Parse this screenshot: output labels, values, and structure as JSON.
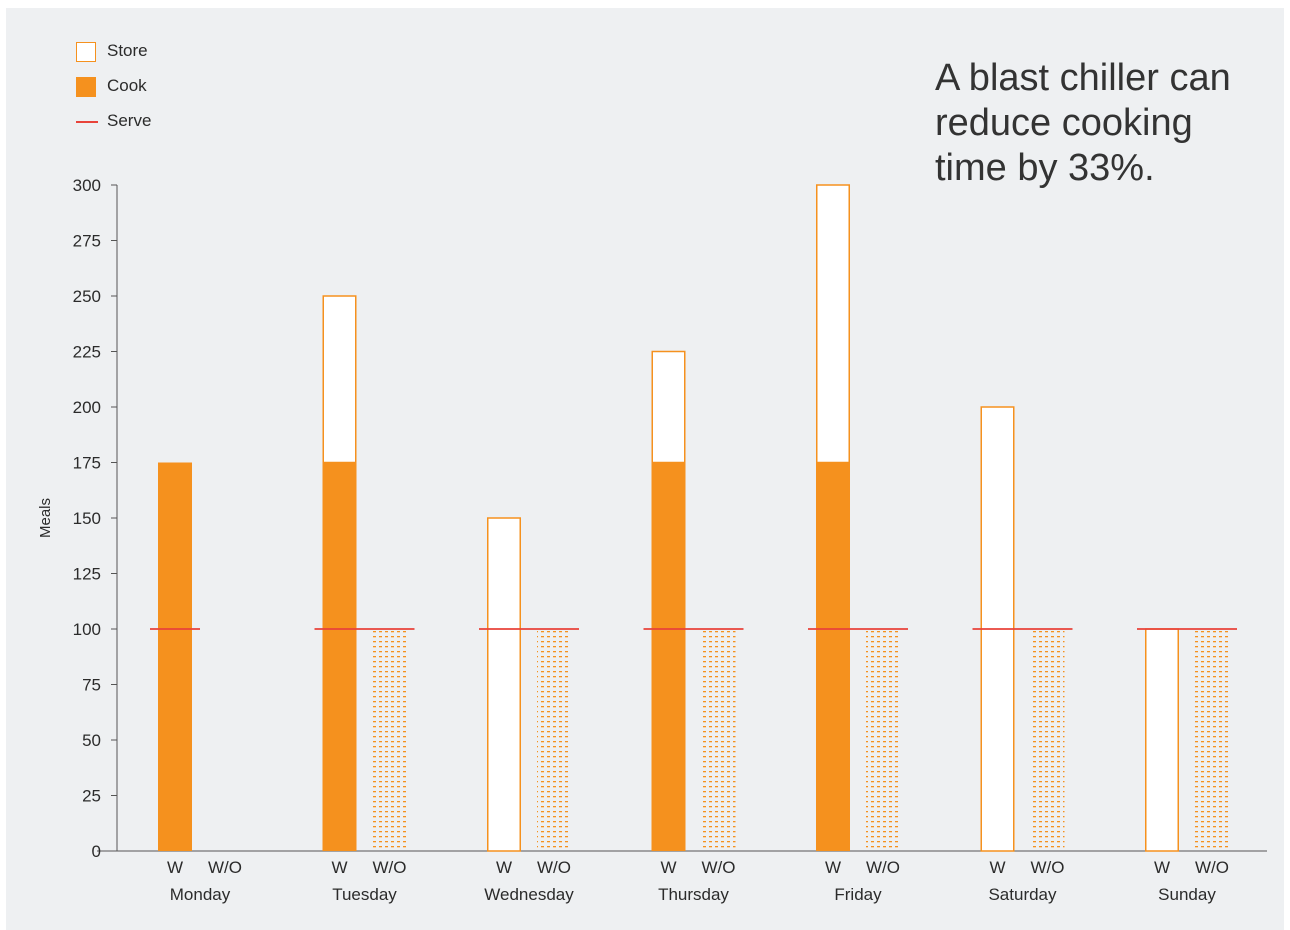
{
  "headline": "A blast chiller can\nreduce cooking\ntime by 33%.",
  "legend": {
    "store": "Store",
    "cook": "Cook",
    "serve": "Serve"
  },
  "colors": {
    "cook": "#f5911e",
    "store_border": "#f5911e",
    "store_fill": "#ffffff",
    "serve": "#e8433a",
    "background": "#eef0f2",
    "axis": "#555555"
  },
  "chart_data": {
    "type": "bar",
    "ylabel": "Meals",
    "ylim": [
      0,
      300
    ],
    "yticks": [
      0,
      25,
      50,
      75,
      100,
      125,
      150,
      175,
      200,
      225,
      250,
      275,
      300
    ],
    "bar_labels": {
      "with": "W",
      "without": "W/O"
    },
    "days": [
      {
        "day": "Monday",
        "with_cook": 175,
        "with_store": 0,
        "without_cook": 0,
        "serve": 100
      },
      {
        "day": "Tuesday",
        "with_cook": 175,
        "with_store": 75,
        "without_cook": 100,
        "serve": 100
      },
      {
        "day": "Wednesday",
        "with_cook": 0,
        "with_store": 150,
        "without_cook": 100,
        "serve": 100
      },
      {
        "day": "Thursday",
        "with_cook": 175,
        "with_store": 50,
        "without_cook": 100,
        "serve": 100
      },
      {
        "day": "Friday",
        "with_cook": 175,
        "with_store": 125,
        "without_cook": 100,
        "serve": 100
      },
      {
        "day": "Saturday",
        "with_cook": 0,
        "with_store": 200,
        "without_cook": 100,
        "serve": 100
      },
      {
        "day": "Sunday",
        "with_cook": 0,
        "with_store": 100,
        "without_cook": 100,
        "serve": 100
      }
    ]
  }
}
